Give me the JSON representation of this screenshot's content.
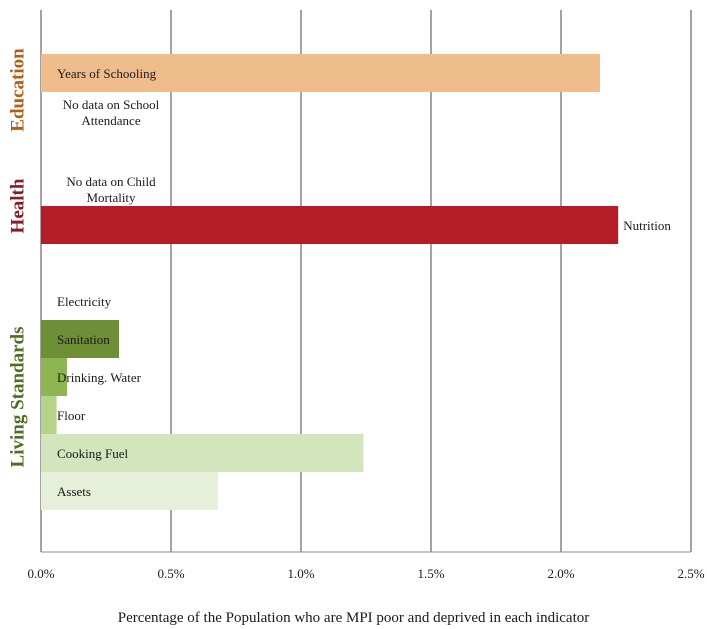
{
  "chart_data": {
    "type": "bar",
    "orientation": "horizontal",
    "xlabel": "Percentage of the Population who are MPI poor and deprived in each indicator",
    "xlim": [
      0,
      2.5
    ],
    "x_ticks": [
      "0.0%",
      "0.5%",
      "1.0%",
      "1.5%",
      "2.0%",
      "2.5%"
    ],
    "grid": "vertical",
    "groups": [
      {
        "name": "Education",
        "color": "#b35e14"
      },
      {
        "name": "Health",
        "color": "#8b1a24"
      },
      {
        "name": "Living Standards",
        "color": "#4e6e22"
      }
    ],
    "bars": [
      {
        "label": "Years of Schooling",
        "value": 2.15,
        "group": "Education",
        "color": "#efbc8c",
        "label_pos": "inside"
      },
      {
        "label": "No data on School Attendance",
        "value": null,
        "group": "Education",
        "label_pos": "note"
      },
      {
        "label": "No data on Child Mortality",
        "value": null,
        "group": "Health",
        "label_pos": "note"
      },
      {
        "label": "Nutrition",
        "value": 2.22,
        "group": "Health",
        "color": "#b41c27",
        "label_pos": "outside"
      },
      {
        "label": "Electricity",
        "value": 0.0,
        "group": "Living Standards",
        "color": "#6e8f35",
        "label_pos": "inside"
      },
      {
        "label": "Sanitation",
        "value": 0.3,
        "group": "Living Standards",
        "color": "#6e8f35",
        "label_pos": "inside"
      },
      {
        "label": "Drinking. Water",
        "value": 0.1,
        "group": "Living Standards",
        "color": "#8fb552",
        "label_pos": "inside"
      },
      {
        "label": "Floor",
        "value": 0.06,
        "group": "Living Standards",
        "color": "#b7d28a",
        "label_pos": "inside"
      },
      {
        "label": "Cooking Fuel",
        "value": 1.24,
        "group": "Living Standards",
        "color": "#d3e5bd",
        "label_pos": "inside"
      },
      {
        "label": "Assets",
        "value": 0.68,
        "group": "Living Standards",
        "color": "#e6efd9",
        "label_pos": "inside"
      }
    ]
  }
}
